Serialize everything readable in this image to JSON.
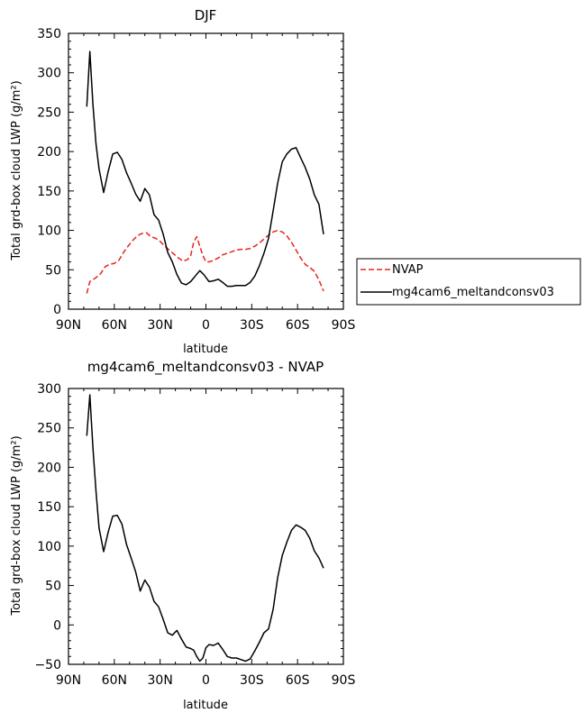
{
  "chart_data": [
    {
      "type": "line",
      "title": "DJF",
      "xlabel": "latitude",
      "ylabel": "Total grd-box cloud LWP (g/m²)",
      "xlim": [
        -90,
        90
      ],
      "ylim": [
        0,
        350
      ],
      "x_ticks": [
        -90,
        -60,
        -30,
        0,
        30,
        60,
        90
      ],
      "x_tick_labels": [
        "90N",
        "60N",
        "30N",
        "0",
        "30S",
        "60S",
        "90S"
      ],
      "y_ticks": [
        0,
        50,
        100,
        150,
        200,
        250,
        300,
        350
      ],
      "y_tick_labels": [
        "0",
        "50",
        "100",
        "150",
        "200",
        "250",
        "300",
        "350"
      ],
      "legend": "right",
      "series": [
        {
          "name": "NVAP",
          "color": "#e8231f",
          "dash": "dashed",
          "x": [
            -78,
            -76,
            -72,
            -69,
            -66,
            -63,
            -60,
            -57,
            -54,
            -51,
            -48,
            -45,
            -42,
            -39,
            -36,
            -33,
            -30,
            -27,
            -24,
            -21,
            -18,
            -15,
            -12,
            -10,
            -8,
            -6,
            -4,
            -2,
            0,
            2,
            5,
            8,
            11,
            14,
            17,
            20,
            23,
            26,
            29,
            32,
            35,
            38,
            41,
            44,
            47,
            50,
            53,
            56,
            59,
            62,
            65,
            68,
            71,
            74,
            77
          ],
          "values": [
            20,
            35,
            40,
            45,
            54,
            57,
            58,
            62,
            72,
            80,
            87,
            93,
            96,
            97,
            92,
            90,
            86,
            80,
            75,
            70,
            65,
            61,
            63,
            68,
            85,
            92,
            80,
            68,
            60,
            60,
            62,
            65,
            69,
            71,
            73,
            75,
            76,
            76,
            77,
            80,
            84,
            89,
            94,
            98,
            100,
            98,
            93,
            85,
            75,
            65,
            57,
            53,
            48,
            37,
            23
          ]
        },
        {
          "name": "mg4cam6_meltandconsv03",
          "color": "#000000",
          "dash": "solid",
          "x": [
            -78,
            -76,
            -74,
            -72,
            -70,
            -67,
            -64,
            -61,
            -58,
            -55,
            -52,
            -49,
            -46,
            -43,
            -40,
            -37,
            -34,
            -31,
            -28,
            -25,
            -22,
            -19,
            -16,
            -13,
            -10,
            -7,
            -4,
            -1,
            2,
            5,
            8,
            11,
            14,
            17,
            20,
            23,
            26,
            29,
            32,
            35,
            38,
            41,
            44,
            47,
            50,
            53,
            56,
            59,
            62,
            65,
            68,
            71,
            74,
            77
          ],
          "values": [
            257,
            327,
            260,
            210,
            178,
            148,
            175,
            197,
            199,
            190,
            173,
            160,
            146,
            137,
            153,
            145,
            120,
            113,
            95,
            72,
            60,
            44,
            33,
            31,
            35,
            42,
            49,
            43,
            35,
            36,
            38,
            34,
            29,
            29,
            30,
            30,
            30,
            34,
            42,
            55,
            71,
            90,
            125,
            160,
            187,
            197,
            203,
            205,
            192,
            180,
            165,
            145,
            133,
            95
          ]
        }
      ]
    },
    {
      "type": "line",
      "title": "mg4cam6_meltandconsv03 - NVAP",
      "xlabel": "latitude",
      "ylabel": "Total grd-box cloud LWP (g/m²)",
      "xlim": [
        -90,
        90
      ],
      "ylim": [
        -50,
        300
      ],
      "x_ticks": [
        -90,
        -60,
        -30,
        0,
        30,
        60,
        90
      ],
      "x_tick_labels": [
        "90N",
        "60N",
        "30N",
        "0",
        "30S",
        "60S",
        "90S"
      ],
      "y_ticks": [
        -50,
        0,
        50,
        100,
        150,
        200,
        250,
        300
      ],
      "y_tick_labels": [
        "−50",
        "0",
        "50",
        "100",
        "150",
        "200",
        "250",
        "300"
      ],
      "series": [
        {
          "color": "#000000",
          "dash": "solid",
          "x": [
            -78,
            -76,
            -74,
            -72,
            -70,
            -67,
            -64,
            -61,
            -58,
            -55,
            -52,
            -49,
            -46,
            -43,
            -40,
            -37,
            -34,
            -31,
            -28,
            -25,
            -22,
            -19,
            -16,
            -13,
            -10,
            -8,
            -6,
            -4,
            -2,
            0,
            2,
            5,
            8,
            11,
            14,
            17,
            20,
            23,
            26,
            29,
            32,
            35,
            38,
            41,
            44,
            47,
            50,
            53,
            56,
            59,
            62,
            65,
            68,
            71,
            74,
            77
          ],
          "values": [
            240,
            292,
            225,
            170,
            123,
            93,
            118,
            138,
            139,
            128,
            102,
            85,
            67,
            43,
            57,
            48,
            30,
            23,
            7,
            -10,
            -13,
            -7,
            -18,
            -28,
            -30,
            -32,
            -40,
            -46,
            -42,
            -29,
            -25,
            -26,
            -23,
            -31,
            -40,
            -42,
            -42,
            -44,
            -46,
            -43,
            -33,
            -22,
            -10,
            -5,
            20,
            60,
            88,
            105,
            120,
            127,
            124,
            120,
            110,
            94,
            85,
            72
          ]
        }
      ]
    }
  ]
}
